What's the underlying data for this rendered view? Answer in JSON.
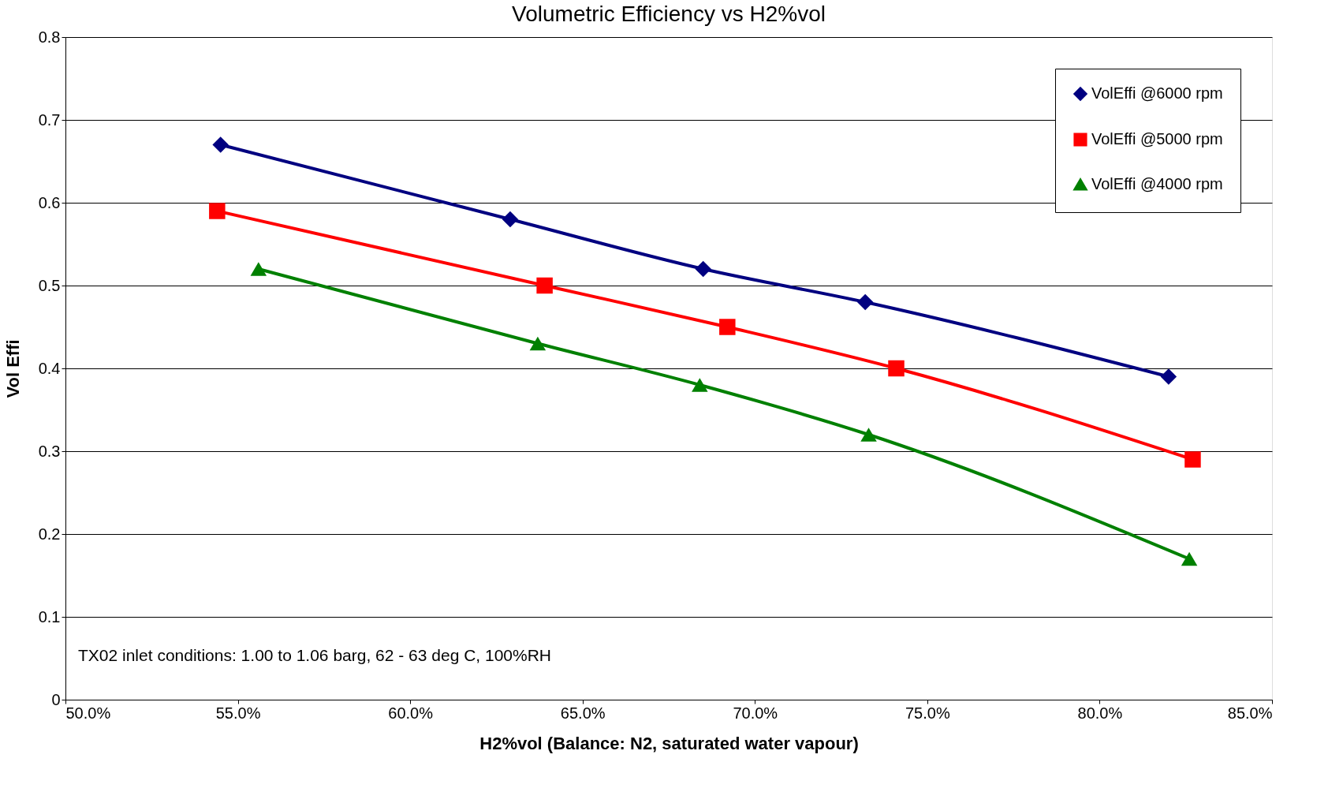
{
  "chart_data": {
    "type": "line",
    "title": "Volumetric  Efficiency vs H2%vol",
    "xlabel": "H2%vol (Balance: N2, saturated water vapour)",
    "ylabel": "Vol Effi",
    "xlim": [
      50,
      85
    ],
    "xticks": [
      {
        "value": 50,
        "label": "50.0%"
      },
      {
        "value": 55,
        "label": "55.0%"
      },
      {
        "value": 60,
        "label": "60.0%"
      },
      {
        "value": 65,
        "label": "65.0%"
      },
      {
        "value": 70,
        "label": "70.0%"
      },
      {
        "value": 75,
        "label": "75.0%"
      },
      {
        "value": 80,
        "label": "80.0%"
      },
      {
        "value": 85,
        "label": "85.0%"
      }
    ],
    "ylim": [
      0,
      0.8
    ],
    "yticks": [
      0,
      0.1,
      0.2,
      0.3,
      0.4,
      0.5,
      0.6,
      0.7,
      0.8
    ],
    "grid": "y",
    "legend": "top right",
    "line_style": "solid",
    "annotations": [
      "TX02 inlet conditions:  1.00 to 1.06 barg, 62 - 63 deg C, 100%RH"
    ],
    "series": [
      {
        "name": "VolEffi @6000 rpm",
        "color": "#000080",
        "marker": "diamond",
        "x": [
          54.5,
          62.9,
          68.5,
          73.2,
          82.0
        ],
        "values": [
          0.67,
          0.58,
          0.52,
          0.48,
          0.39
        ]
      },
      {
        "name": "VolEffi @5000 rpm",
        "color": "#ff0000",
        "marker": "square",
        "x": [
          54.4,
          63.9,
          69.2,
          74.1,
          82.7
        ],
        "values": [
          0.59,
          0.5,
          0.45,
          0.4,
          0.29
        ]
      },
      {
        "name": "VolEffi @4000 rpm",
        "color": "#008000",
        "marker": "triangle",
        "x": [
          55.6,
          63.7,
          68.4,
          73.3,
          82.6
        ],
        "values": [
          0.52,
          0.43,
          0.38,
          0.32,
          0.17
        ]
      }
    ]
  }
}
